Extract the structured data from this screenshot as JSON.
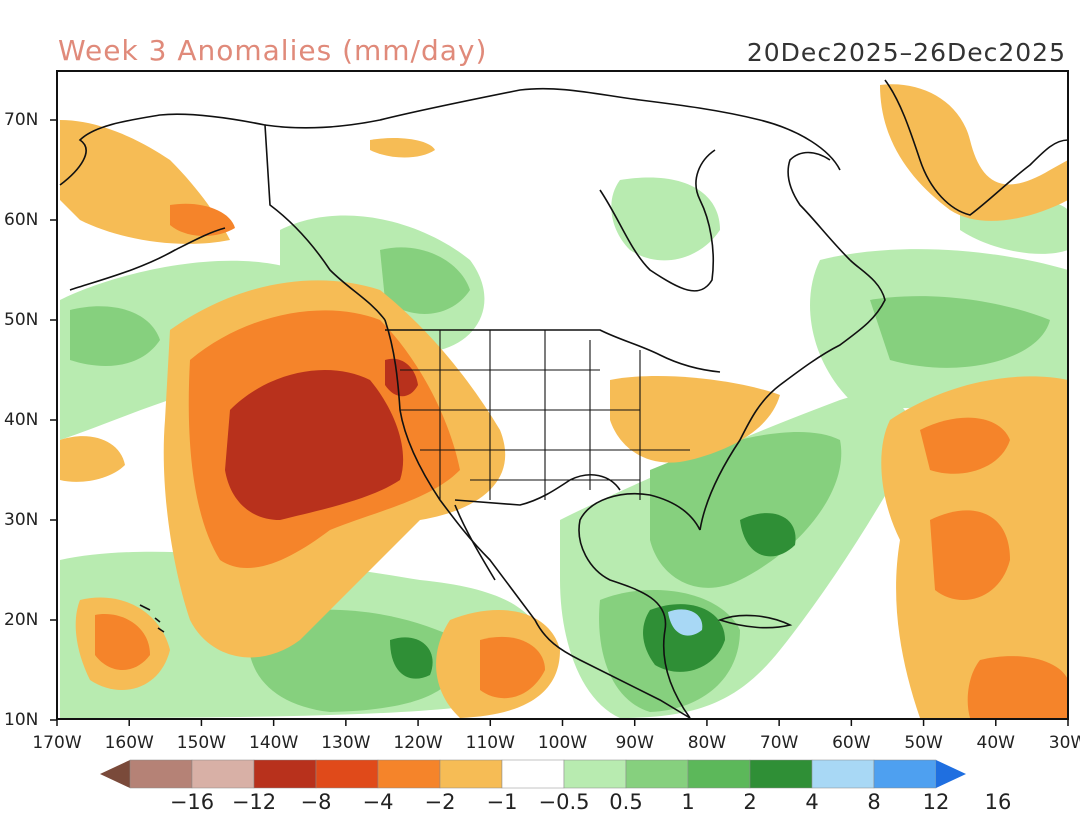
{
  "header": {
    "title": "Week 3 Anomalies (mm/day)",
    "dates": "20Dec2025–26Dec2025"
  },
  "axes": {
    "lat_labels": [
      "70N",
      "60N",
      "50N",
      "40N",
      "30N",
      "20N",
      "10N"
    ],
    "lon_labels": [
      "170W",
      "160W",
      "150W",
      "140W",
      "130W",
      "120W",
      "110W",
      "100W",
      "90W",
      "80W",
      "70W",
      "60W",
      "50W",
      "40W",
      "30W"
    ]
  },
  "colorbar": {
    "labels": [
      "−16",
      "−12",
      "−8",
      "−4",
      "−2",
      "−1",
      "−0.5",
      "0.5",
      "1",
      "2",
      "4",
      "8",
      "12",
      "16"
    ],
    "colors": [
      "#7a4a3a",
      "#b58276",
      "#d8b0a6",
      "#b8311c",
      "#e04a1a",
      "#f5842a",
      "#f6bc55",
      "#ffffff",
      "#b8ebb0",
      "#86d07e",
      "#5cb85a",
      "#2f8f36",
      "#a8d8f5",
      "#4ea0f0",
      "#1f6fe0"
    ]
  },
  "colors": {
    "ocean_land_bg": "#ffffff",
    "outline": "#111111",
    "title_color": "#e08a7a"
  }
}
